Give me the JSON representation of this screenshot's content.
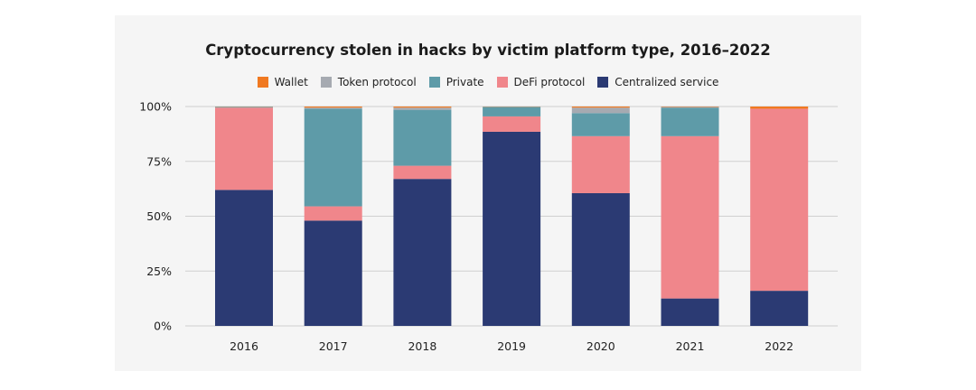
{
  "chart_data": {
    "type": "bar",
    "stacked": true,
    "title": "Cryptocurrency stolen in hacks by victim platform type, 2016–2022",
    "xlabel": "",
    "ylabel": "",
    "ylim": [
      0,
      100
    ],
    "y_ticks": [
      "0%",
      "25%",
      "50%",
      "75%",
      "100%"
    ],
    "y_tick_values": [
      0,
      25,
      50,
      75,
      100
    ],
    "grid": true,
    "legend_position": "top-center",
    "categories": [
      "2016",
      "2017",
      "2018",
      "2019",
      "2020",
      "2021",
      "2022"
    ],
    "series": [
      {
        "name": "Centralized service",
        "color": "#2b3a73",
        "values": [
          62,
          48,
          67,
          88.5,
          60.5,
          12.5,
          16
        ]
      },
      {
        "name": "DeFi protocol",
        "color": "#f0868b",
        "values": [
          37.5,
          6.5,
          6,
          7,
          26,
          74,
          83
        ]
      },
      {
        "name": "Private",
        "color": "#5e9ba8",
        "values": [
          0.3,
          44.5,
          25.5,
          4.3,
          10.5,
          13,
          0
        ]
      },
      {
        "name": "Token protocol",
        "color": "#a6aab1",
        "values": [
          0.1,
          0.5,
          1,
          0.1,
          2.5,
          0.3,
          0
        ]
      },
      {
        "name": "Wallet",
        "color": "#f07921",
        "values": [
          0.1,
          0.5,
          0.5,
          0.1,
          0.5,
          0.2,
          1
        ]
      }
    ],
    "legend_order": [
      "Wallet",
      "Token protocol",
      "Private",
      "DeFi protocol",
      "Centralized service"
    ]
  }
}
